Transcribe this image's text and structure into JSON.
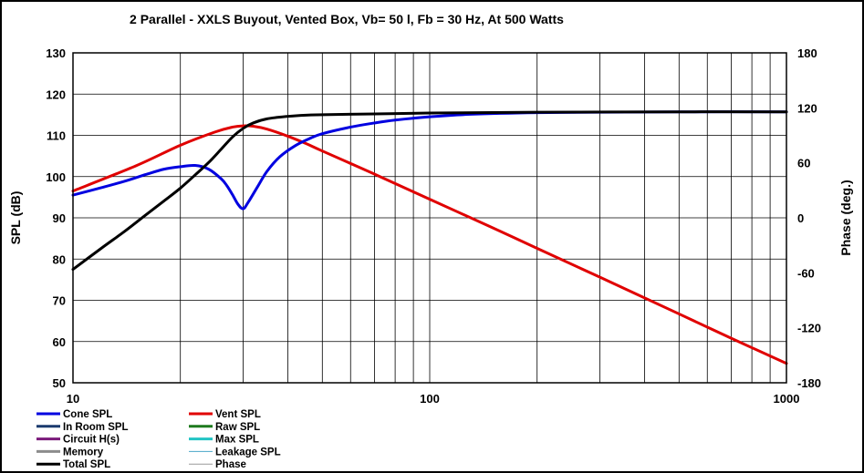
{
  "chart_data": {
    "type": "line",
    "title": "2 Parallel  - XXLS Buyout,  Vented Box, Vb= 50 l,  Fb = 30 Hz,  At 500 Watts",
    "xlabel": "",
    "ylabel": "SPL (dB)",
    "y2label": "Phase (deg.)",
    "x_scale": "log",
    "xlim": [
      10,
      1000
    ],
    "ylim": [
      50,
      130
    ],
    "y2lim": [
      -180,
      180
    ],
    "x_ticks": [
      10,
      100,
      1000
    ],
    "x_tick_labels": [
      "10",
      "100",
      "1000"
    ],
    "y_ticks": [
      50,
      60,
      70,
      80,
      90,
      100,
      110,
      120,
      130
    ],
    "y_tick_labels": [
      "50",
      "60",
      "70",
      "80",
      "90",
      "100",
      "110",
      "120",
      "130"
    ],
    "y2_ticks": [
      -180,
      -120,
      -60,
      0,
      60,
      120,
      180
    ],
    "y2_tick_labels": [
      "-180",
      "-120",
      "-60",
      "0",
      "60",
      "120",
      "180"
    ],
    "grid": true,
    "series": [
      {
        "name": "Cone SPL",
        "color": "#0000e0",
        "points": [
          [
            10,
            95.5
          ],
          [
            12,
            97.3
          ],
          [
            14,
            98.9
          ],
          [
            16,
            100.5
          ],
          [
            18,
            101.8
          ],
          [
            20,
            102.4
          ],
          [
            22,
            102.7
          ],
          [
            24,
            101.8
          ],
          [
            26,
            99.5
          ],
          [
            27,
            97.8
          ],
          [
            28,
            95.6
          ],
          [
            29,
            93.3
          ],
          [
            30,
            92.2
          ],
          [
            31,
            93.8
          ],
          [
            33,
            97.7
          ],
          [
            35,
            101.3
          ],
          [
            38,
            104.8
          ],
          [
            42,
            107.5
          ],
          [
            46,
            109.2
          ],
          [
            50,
            110.4
          ],
          [
            60,
            112.0
          ],
          [
            70,
            113.0
          ],
          [
            80,
            113.7
          ],
          [
            100,
            114.5
          ],
          [
            130,
            115.1
          ],
          [
            200,
            115.5
          ],
          [
            300,
            115.6
          ],
          [
            500,
            115.7
          ],
          [
            1000,
            115.7
          ]
        ]
      },
      {
        "name": "Vent SPL",
        "color": "#e00000",
        "points": [
          [
            10,
            96.5
          ],
          [
            15,
            102.6
          ],
          [
            20,
            107.6
          ],
          [
            25,
            110.8
          ],
          [
            28,
            112.0
          ],
          [
            30,
            112.3
          ],
          [
            32,
            112.2
          ],
          [
            35,
            111.5
          ],
          [
            40,
            109.8
          ],
          [
            45,
            108.0
          ],
          [
            50,
            106.2
          ],
          [
            70,
            100.6
          ],
          [
            100,
            94.5
          ],
          [
            150,
            87.6
          ],
          [
            200,
            82.6
          ],
          [
            300,
            75.6
          ],
          [
            500,
            66.7
          ],
          [
            700,
            60.8
          ],
          [
            1000,
            54.7
          ]
        ]
      },
      {
        "name": "In Room SPL",
        "color": "#1a3a6e",
        "points": []
      },
      {
        "name": "Raw SPL",
        "color": "#1e7a1e",
        "points": []
      },
      {
        "name": "Circuit H(s)",
        "color": "#7a1a7a",
        "points": []
      },
      {
        "name": "Max SPL",
        "color": "#22c4c4",
        "points": []
      },
      {
        "name": "Memory",
        "color": "#8c8c8c",
        "points": []
      },
      {
        "name": "Leakage SPL",
        "color": "#4aa6c8",
        "points": []
      },
      {
        "name": "Total SPL",
        "color": "#000000",
        "points": [
          [
            10,
            77.5
          ],
          [
            12,
            82.6
          ],
          [
            14,
            86.8
          ],
          [
            16,
            90.7
          ],
          [
            18,
            94.1
          ],
          [
            20,
            97.2
          ],
          [
            22,
            100.4
          ],
          [
            24,
            103.4
          ],
          [
            26,
            106.6
          ],
          [
            28,
            109.6
          ],
          [
            30,
            111.7
          ],
          [
            32,
            113.0
          ],
          [
            35,
            114.0
          ],
          [
            40,
            114.6
          ],
          [
            45,
            114.9
          ],
          [
            50,
            115.0
          ],
          [
            70,
            115.2
          ],
          [
            100,
            115.4
          ],
          [
            200,
            115.6
          ],
          [
            500,
            115.7
          ],
          [
            1000,
            115.7
          ]
        ]
      },
      {
        "name": "Phase",
        "color": "#999999",
        "points": []
      }
    ],
    "legend": {
      "placement": "bottom-left",
      "columns": [
        [
          {
            "name": "Cone SPL",
            "color": "#0000e0",
            "weight": "thick"
          },
          {
            "name": "In Room SPL",
            "color": "#1a3a6e",
            "weight": "thick"
          },
          {
            "name": "Circuit H(s)",
            "color": "#7a1a7a",
            "weight": "thick"
          },
          {
            "name": "Memory",
            "color": "#8c8c8c",
            "weight": "thick"
          },
          {
            "name": "Total SPL",
            "color": "#000000",
            "weight": "thick"
          }
        ],
        [
          {
            "name": "Vent SPL",
            "color": "#e00000",
            "weight": "thick"
          },
          {
            "name": "Raw SPL",
            "color": "#1e7a1e",
            "weight": "thick"
          },
          {
            "name": "Max SPL",
            "color": "#22c4c4",
            "weight": "thick"
          },
          {
            "name": "Leakage SPL",
            "color": "#4aa6c8",
            "weight": "thin"
          },
          {
            "name": "Phase",
            "color": "#999999",
            "weight": "thin"
          }
        ]
      ]
    }
  }
}
